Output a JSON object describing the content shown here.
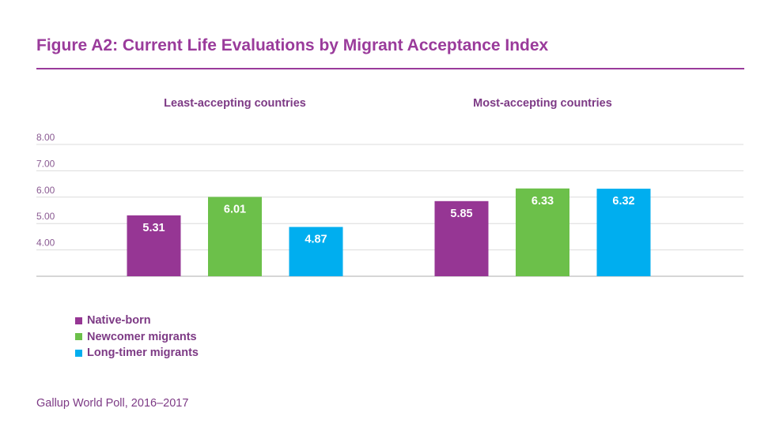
{
  "title": "Figure A2: Current Life Evaluations by Migrant Acceptance Index",
  "source": "Gallup World Poll, 2016–2017",
  "chart_data": {
    "type": "bar",
    "title": "Figure A2: Current Life Evaluations by Migrant Acceptance Index",
    "categories": [
      "Least-accepting countries",
      "Most-accepting countries"
    ],
    "series": [
      {
        "name": "Native-born",
        "color": "#963694",
        "values": [
          5.31,
          5.85
        ]
      },
      {
        "name": "Newcomer migrants",
        "color": "#6cc04a",
        "values": [
          6.01,
          6.33
        ]
      },
      {
        "name": "Long-timer migrants",
        "color": "#00aeef",
        "values": [
          4.87,
          6.32
        ]
      }
    ],
    "y_ticks": [
      4.0,
      5.0,
      6.0,
      7.0,
      8.0
    ],
    "y_tick_labels": [
      "4.00",
      "5.00",
      "6.00",
      "7.00",
      "8.00"
    ],
    "ylim": [
      3.0,
      8.0
    ],
    "xlabel": "",
    "ylabel": "",
    "grid": true,
    "legend_position": "bottom-left"
  }
}
